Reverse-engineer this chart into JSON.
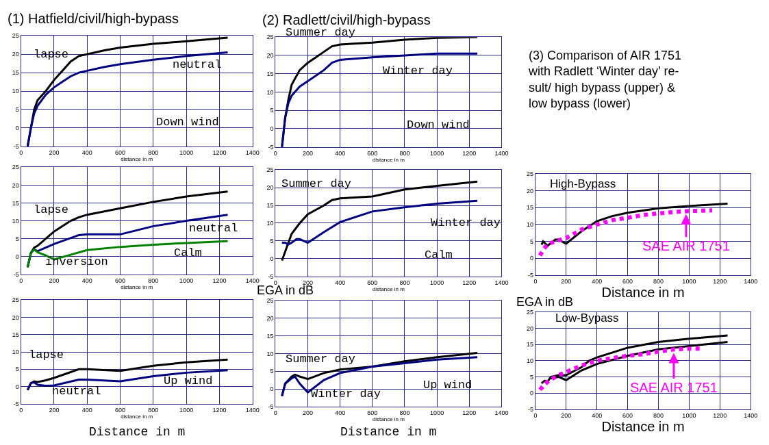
{
  "chart_data": [
    {
      "type": "line",
      "title": "(1) Hatfield/civil/high-bypass",
      "xlabel": "distance in m",
      "xlim": [
        0,
        1400
      ],
      "xticks": [
        0,
        200,
        400,
        600,
        800,
        1000,
        1200,
        1400
      ],
      "ylim": [
        -5,
        25
      ],
      "yticks": [
        -5,
        0,
        5,
        10,
        15,
        20,
        25
      ],
      "grid": true,
      "series": [
        {
          "color": "#000000",
          "x": [
            40,
            60,
            80,
            100,
            150,
            200,
            250,
            300,
            350,
            400,
            500,
            600,
            800,
            1000,
            1250
          ],
          "values": [
            -5,
            0,
            5,
            7.5,
            10,
            13,
            15.5,
            18,
            19.5,
            20,
            21,
            21.8,
            22.8,
            23.5,
            24.5
          ]
        },
        {
          "color": "#000080",
          "x": [
            40,
            60,
            80,
            100,
            150,
            200,
            250,
            300,
            350,
            400,
            500,
            600,
            800,
            1000,
            1250
          ],
          "values": [
            -5,
            0,
            4,
            6,
            9,
            11,
            12.5,
            14,
            15,
            15.5,
            16.5,
            17.3,
            18.5,
            19.5,
            20.5
          ]
        }
      ],
      "annotations": [
        "lapse",
        "neutral",
        "Down wind"
      ]
    },
    {
      "type": "line",
      "title": "(2) Radlett/civil/high-bypass",
      "xlabel": "distance in m",
      "xlim": [
        0,
        1400
      ],
      "xticks": [
        0,
        200,
        400,
        600,
        800,
        1000,
        1200,
        1400
      ],
      "ylim": [
        -5,
        25
      ],
      "yticks": [
        -5,
        0,
        5,
        10,
        15,
        20,
        25
      ],
      "grid": true,
      "series": [
        {
          "color": "#000000",
          "x": [
            40,
            60,
            80,
            100,
            150,
            200,
            250,
            300,
            350,
            400,
            600,
            800,
            1000,
            1250
          ],
          "values": [
            -5,
            3,
            8,
            12,
            16,
            18,
            19.5,
            21,
            22.5,
            23,
            23.5,
            24.3,
            24.8,
            25
          ]
        },
        {
          "color": "#000080",
          "x": [
            40,
            60,
            80,
            100,
            150,
            200,
            250,
            300,
            350,
            400,
            600,
            800,
            1000,
            1250
          ],
          "values": [
            -5,
            3,
            7,
            9,
            11.5,
            13,
            14.5,
            16,
            18,
            18.8,
            19.5,
            20,
            20.5,
            20.5
          ]
        }
      ],
      "annotations": [
        "Summer day",
        "Winter day",
        "Down wind"
      ]
    },
    {
      "type": "line",
      "xlabel": "distance in m",
      "xlim": [
        0,
        1400
      ],
      "xticks": [
        0,
        200,
        400,
        600,
        800,
        1000,
        1200,
        1400
      ],
      "ylim": [
        -5,
        25
      ],
      "yticks": [
        -5,
        0,
        5,
        10,
        15,
        20,
        25
      ],
      "grid": true,
      "series": [
        {
          "color": "#000000",
          "x": [
            40,
            60,
            80,
            100,
            150,
            200,
            300,
            350,
            400,
            600,
            800,
            1000,
            1250
          ],
          "values": [
            -3,
            1,
            2.5,
            3,
            5,
            7,
            10,
            11,
            11.7,
            13.5,
            15.3,
            16.8,
            18.2
          ]
        },
        {
          "color": "#000080",
          "x": [
            40,
            60,
            80,
            100,
            150,
            200,
            350,
            400,
            600,
            800,
            1000,
            1250
          ],
          "values": [
            -3,
            1,
            2,
            1.5,
            2.5,
            3.5,
            6,
            6.2,
            6.2,
            8.5,
            10,
            11.7
          ]
        },
        {
          "color": "#008000",
          "x": [
            40,
            60,
            80,
            100,
            150,
            200,
            300,
            400,
            600,
            800,
            1000,
            1250
          ],
          "values": [
            -3,
            1,
            2,
            1.2,
            0.3,
            -0.8,
            0.5,
            1.8,
            2.7,
            3.3,
            3.8,
            4.3
          ]
        }
      ],
      "annotations": [
        "lapse",
        "neutral",
        "inversion",
        "Calm"
      ]
    },
    {
      "type": "line",
      "xlabel": "distance in m",
      "xlim": [
        0,
        1400
      ],
      "xticks": [
        0,
        200,
        400,
        600,
        800,
        1000,
        1200,
        1400
      ],
      "ylim": [
        -5,
        25
      ],
      "yticks": [
        -5,
        0,
        5,
        10,
        15,
        20,
        25
      ],
      "grid": true,
      "series": [
        {
          "color": "#000000",
          "x": [
            40,
            60,
            80,
            100,
            150,
            200,
            300,
            350,
            400,
            600,
            800,
            1000,
            1250
          ],
          "values": [
            -0.5,
            2,
            4.5,
            7,
            10,
            12.5,
            15,
            16.5,
            17,
            17.5,
            19.5,
            20.5,
            21.7
          ]
        },
        {
          "color": "#000080",
          "x": [
            40,
            60,
            80,
            100,
            130,
            150,
            200,
            300,
            400,
            600,
            800,
            1000,
            1250
          ],
          "values": [
            4.5,
            4.5,
            4,
            4.5,
            5.5,
            5.5,
            4.5,
            7.5,
            10.3,
            13.3,
            14.5,
            15.5,
            16.3
          ]
        }
      ],
      "annotations": [
        "Summer day",
        "Winter day",
        "Calm"
      ]
    },
    {
      "type": "line",
      "title": "(3) Comparison of AIR 1751\nwith Radlett ‘Winter day’ re-\nsult/ high bypass (upper) &\nlow bypass (lower)",
      "xlabel": "Distance in m",
      "xlim": [
        0,
        1400
      ],
      "xticks": [
        0,
        200,
        400,
        600,
        800,
        1000,
        1200,
        1400
      ],
      "ylim": [
        -5,
        25
      ],
      "yticks": [
        -5,
        0,
        5,
        10,
        15,
        20,
        25
      ],
      "grid": true,
      "series": [
        {
          "color": "#000000",
          "x": [
            40,
            50,
            80,
            100,
            130,
            150,
            200,
            300,
            400,
            500,
            600,
            800,
            1000,
            1250
          ],
          "values": [
            4,
            5,
            3.7,
            4.5,
            5.5,
            5.5,
            4.3,
            8,
            11,
            12.5,
            13.5,
            14.8,
            15.5,
            16.2
          ]
        },
        {
          "color": "#ff00ff",
          "line_style": "dotted",
          "x": [
            30,
            50,
            80,
            150,
            200,
            300,
            400,
            500,
            600,
            700,
            800,
            900,
            1000,
            1150
          ],
          "values": [
            0.8,
            2.5,
            4.2,
            5.3,
            6,
            8.5,
            10,
            11.3,
            12,
            12.8,
            13.3,
            13.7,
            14,
            14.2
          ]
        }
      ],
      "annotations": [
        "High-Bypass",
        {
          "text": "SAE AIR 1751",
          "x": 980,
          "y": 13.5
        }
      ]
    },
    {
      "type": "line",
      "xlabel": "distance in m",
      "xlim": [
        0,
        1400
      ],
      "xticks": [
        0,
        200,
        400,
        600,
        800,
        1000,
        1200,
        1400
      ],
      "ylim": [
        -5,
        25
      ],
      "yticks": [
        -5,
        0,
        5,
        10,
        15,
        20,
        25
      ],
      "grid": true,
      "series": [
        {
          "color": "#000000",
          "x": [
            40,
            60,
            80,
            100,
            150,
            200,
            350,
            400,
            600,
            800,
            1000,
            1250
          ],
          "values": [
            -1,
            1,
            1.5,
            1.3,
            1.8,
            2.5,
            5,
            5,
            4.5,
            6,
            7,
            7.8
          ]
        },
        {
          "color": "#000080",
          "x": [
            40,
            60,
            80,
            100,
            150,
            200,
            350,
            400,
            600,
            800,
            1000,
            1250
          ],
          "values": [
            -1,
            1,
            1.2,
            0.5,
            0.2,
            0.3,
            2,
            2,
            1.5,
            3,
            4,
            4.7
          ]
        }
      ],
      "annotations": [
        "lapse",
        "neutral",
        "Up wind",
        "Distance in m"
      ]
    },
    {
      "type": "line",
      "xlabel": "distance in m",
      "ylabel": "EGA in dB",
      "xlim": [
        0,
        1400
      ],
      "xticks": [
        0,
        200,
        400,
        600,
        800,
        1000,
        1200,
        1400
      ],
      "ylim": [
        -5,
        25
      ],
      "yticks": [
        -5,
        0,
        5,
        10,
        15,
        20,
        25
      ],
      "grid": true,
      "series": [
        {
          "color": "#000000",
          "x": [
            40,
            60,
            80,
            100,
            120,
            150,
            200,
            300,
            400,
            600,
            800,
            1000,
            1250
          ],
          "values": [
            -2,
            1.5,
            2.5,
            3.5,
            4,
            3.5,
            2.8,
            4.5,
            5.5,
            6.3,
            7.8,
            9,
            10.2
          ]
        },
        {
          "color": "#000080",
          "x": [
            40,
            60,
            80,
            100,
            120,
            150,
            200,
            300,
            400,
            600,
            800,
            1000,
            1250
          ],
          "values": [
            -2,
            1.5,
            2.2,
            3,
            3.5,
            1.5,
            -1,
            2.5,
            4.5,
            6.3,
            7.3,
            8.3,
            9
          ]
        }
      ],
      "annotations": [
        "Summer day",
        "Winter day",
        "Up wind",
        "Distance in m"
      ]
    },
    {
      "type": "line",
      "xlabel": "Distance in m",
      "ylabel": "EGA in dB",
      "xlim": [
        0,
        1400
      ],
      "xticks": [
        0,
        200,
        400,
        600,
        800,
        1000,
        1200,
        1400
      ],
      "ylim": [
        -5,
        25
      ],
      "yticks": [
        -5,
        0,
        5,
        10,
        15,
        20,
        25
      ],
      "grid": true,
      "series": [
        {
          "color": "#000000",
          "x": [
            40,
            60,
            80,
            100,
            150,
            200,
            300,
            350,
            400,
            600,
            800,
            1000,
            1250
          ],
          "values": [
            3,
            3.8,
            3.5,
            5,
            5.5,
            5.5,
            8,
            10,
            11,
            14,
            15.8,
            16.8,
            17.8
          ]
        },
        {
          "color": "#000000",
          "x": [
            100,
            150,
            200,
            300,
            400,
            600,
            800,
            1000,
            1250
          ],
          "values": [
            4.5,
            5,
            4,
            7,
            9,
            11.5,
            13.5,
            14.5,
            15.8
          ]
        },
        {
          "color": "#ff00ff",
          "line_style": "dotted",
          "x": [
            30,
            60,
            100,
            150,
            200,
            250,
            300,
            400,
            500,
            600,
            700,
            800,
            900,
            1000,
            1080
          ],
          "values": [
            1,
            2.7,
            4.2,
            5.5,
            6.5,
            7.5,
            8.5,
            10,
            10.8,
            11.5,
            12,
            12.8,
            13.5,
            13.7,
            13.7
          ]
        }
      ],
      "annotations": [
        "Low-Bypass",
        {
          "text": "SAE AIR 1751",
          "x": 900,
          "y": 12.8
        }
      ]
    }
  ]
}
